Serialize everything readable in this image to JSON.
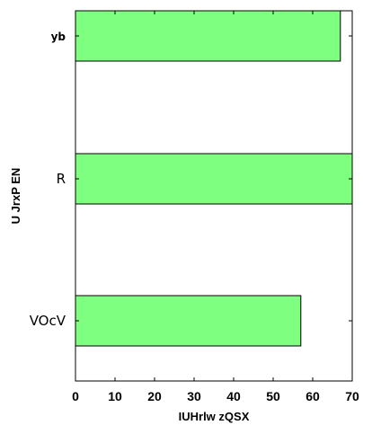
{
  "chart_data": {
    "type": "bar",
    "orientation": "horizontal",
    "categories": [
      "yb",
      "R",
      "VOcV"
    ],
    "values": [
      67,
      70,
      57
    ],
    "xlabel": "IUHrlw zQSX",
    "ylabel": "U JrxP EN",
    "xlim": [
      0,
      70
    ],
    "xticks": [
      0,
      10,
      20,
      30,
      40,
      50,
      60,
      70
    ],
    "bar_color": "#7fff7f",
    "edge_color": "#000000",
    "grid": false,
    "legend": "none"
  }
}
